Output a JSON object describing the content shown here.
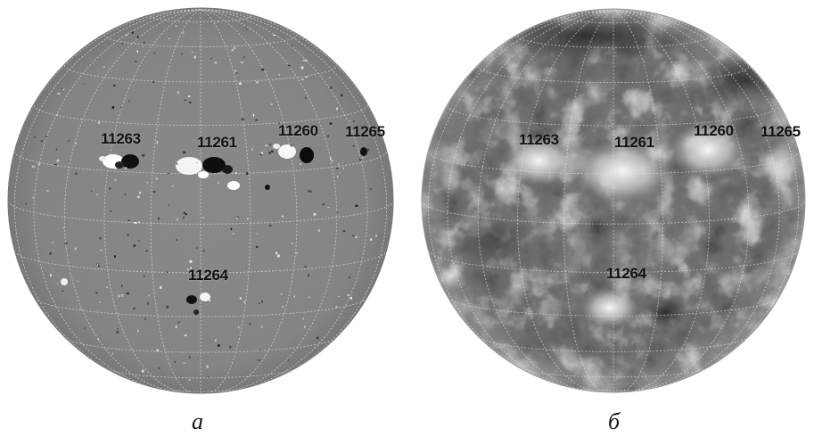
{
  "panels": [
    {
      "caption": "а",
      "regions": [
        "11263",
        "11261",
        "11260",
        "11265",
        "11264"
      ]
    },
    {
      "caption": "б",
      "regions": [
        "11263",
        "11261",
        "11260",
        "11265",
        "11264"
      ]
    }
  ],
  "colors": {
    "magnetogram_background": "#8e8e8e",
    "euv_background": "#6f6f6f",
    "grid": "#d8d8d8",
    "label_text": "#111111"
  }
}
